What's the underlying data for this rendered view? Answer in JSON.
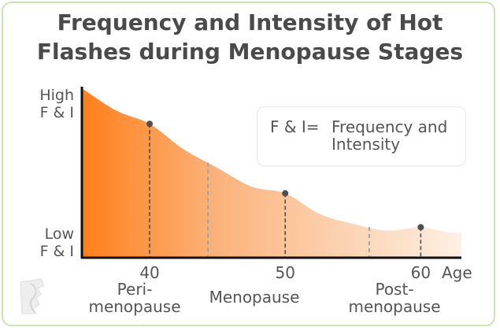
{
  "chart_data": {
    "type": "area",
    "title": "Frequency and Intensity of Hot Flashes during Menopause Stages",
    "xlabel": "Age",
    "xlim": [
      35,
      63
    ],
    "ylim": [
      0,
      1
    ],
    "x_ticks": [
      40,
      50,
      60
    ],
    "y_labels": {
      "high": [
        "High",
        "F & I"
      ],
      "low": [
        "Low",
        "F & I"
      ]
    },
    "series": [
      {
        "x": [
          35,
          37.5,
          40,
          42.5,
          45,
          47.5,
          50,
          52.5,
          55,
          57.5,
          60,
          62,
          63
        ],
        "y": [
          1.0,
          0.87,
          0.79,
          0.64,
          0.53,
          0.42,
          0.38,
          0.26,
          0.2,
          0.16,
          0.18,
          0.15,
          0.15
        ]
      }
    ],
    "markers": [
      {
        "x": 40,
        "y": 0.79
      },
      {
        "x": 50,
        "y": 0.38
      },
      {
        "x": 60,
        "y": 0.18
      }
    ],
    "stage_boundaries": [
      44.3,
      56.2
    ],
    "stages": [
      "Peri-\nmenopause",
      "Menopause",
      "Post-\nmenopause"
    ],
    "legend": {
      "key": "F & I=",
      "text": "Frequency and\nIntensity"
    },
    "colors": {
      "fill_start": "#ff7f1a",
      "fill_end": "#fdf0e4",
      "marker": "#4f4f4f",
      "axis": "#111111",
      "divider": "#9fa3a6",
      "text": "#555555",
      "title": "#4a4a4a"
    }
  }
}
